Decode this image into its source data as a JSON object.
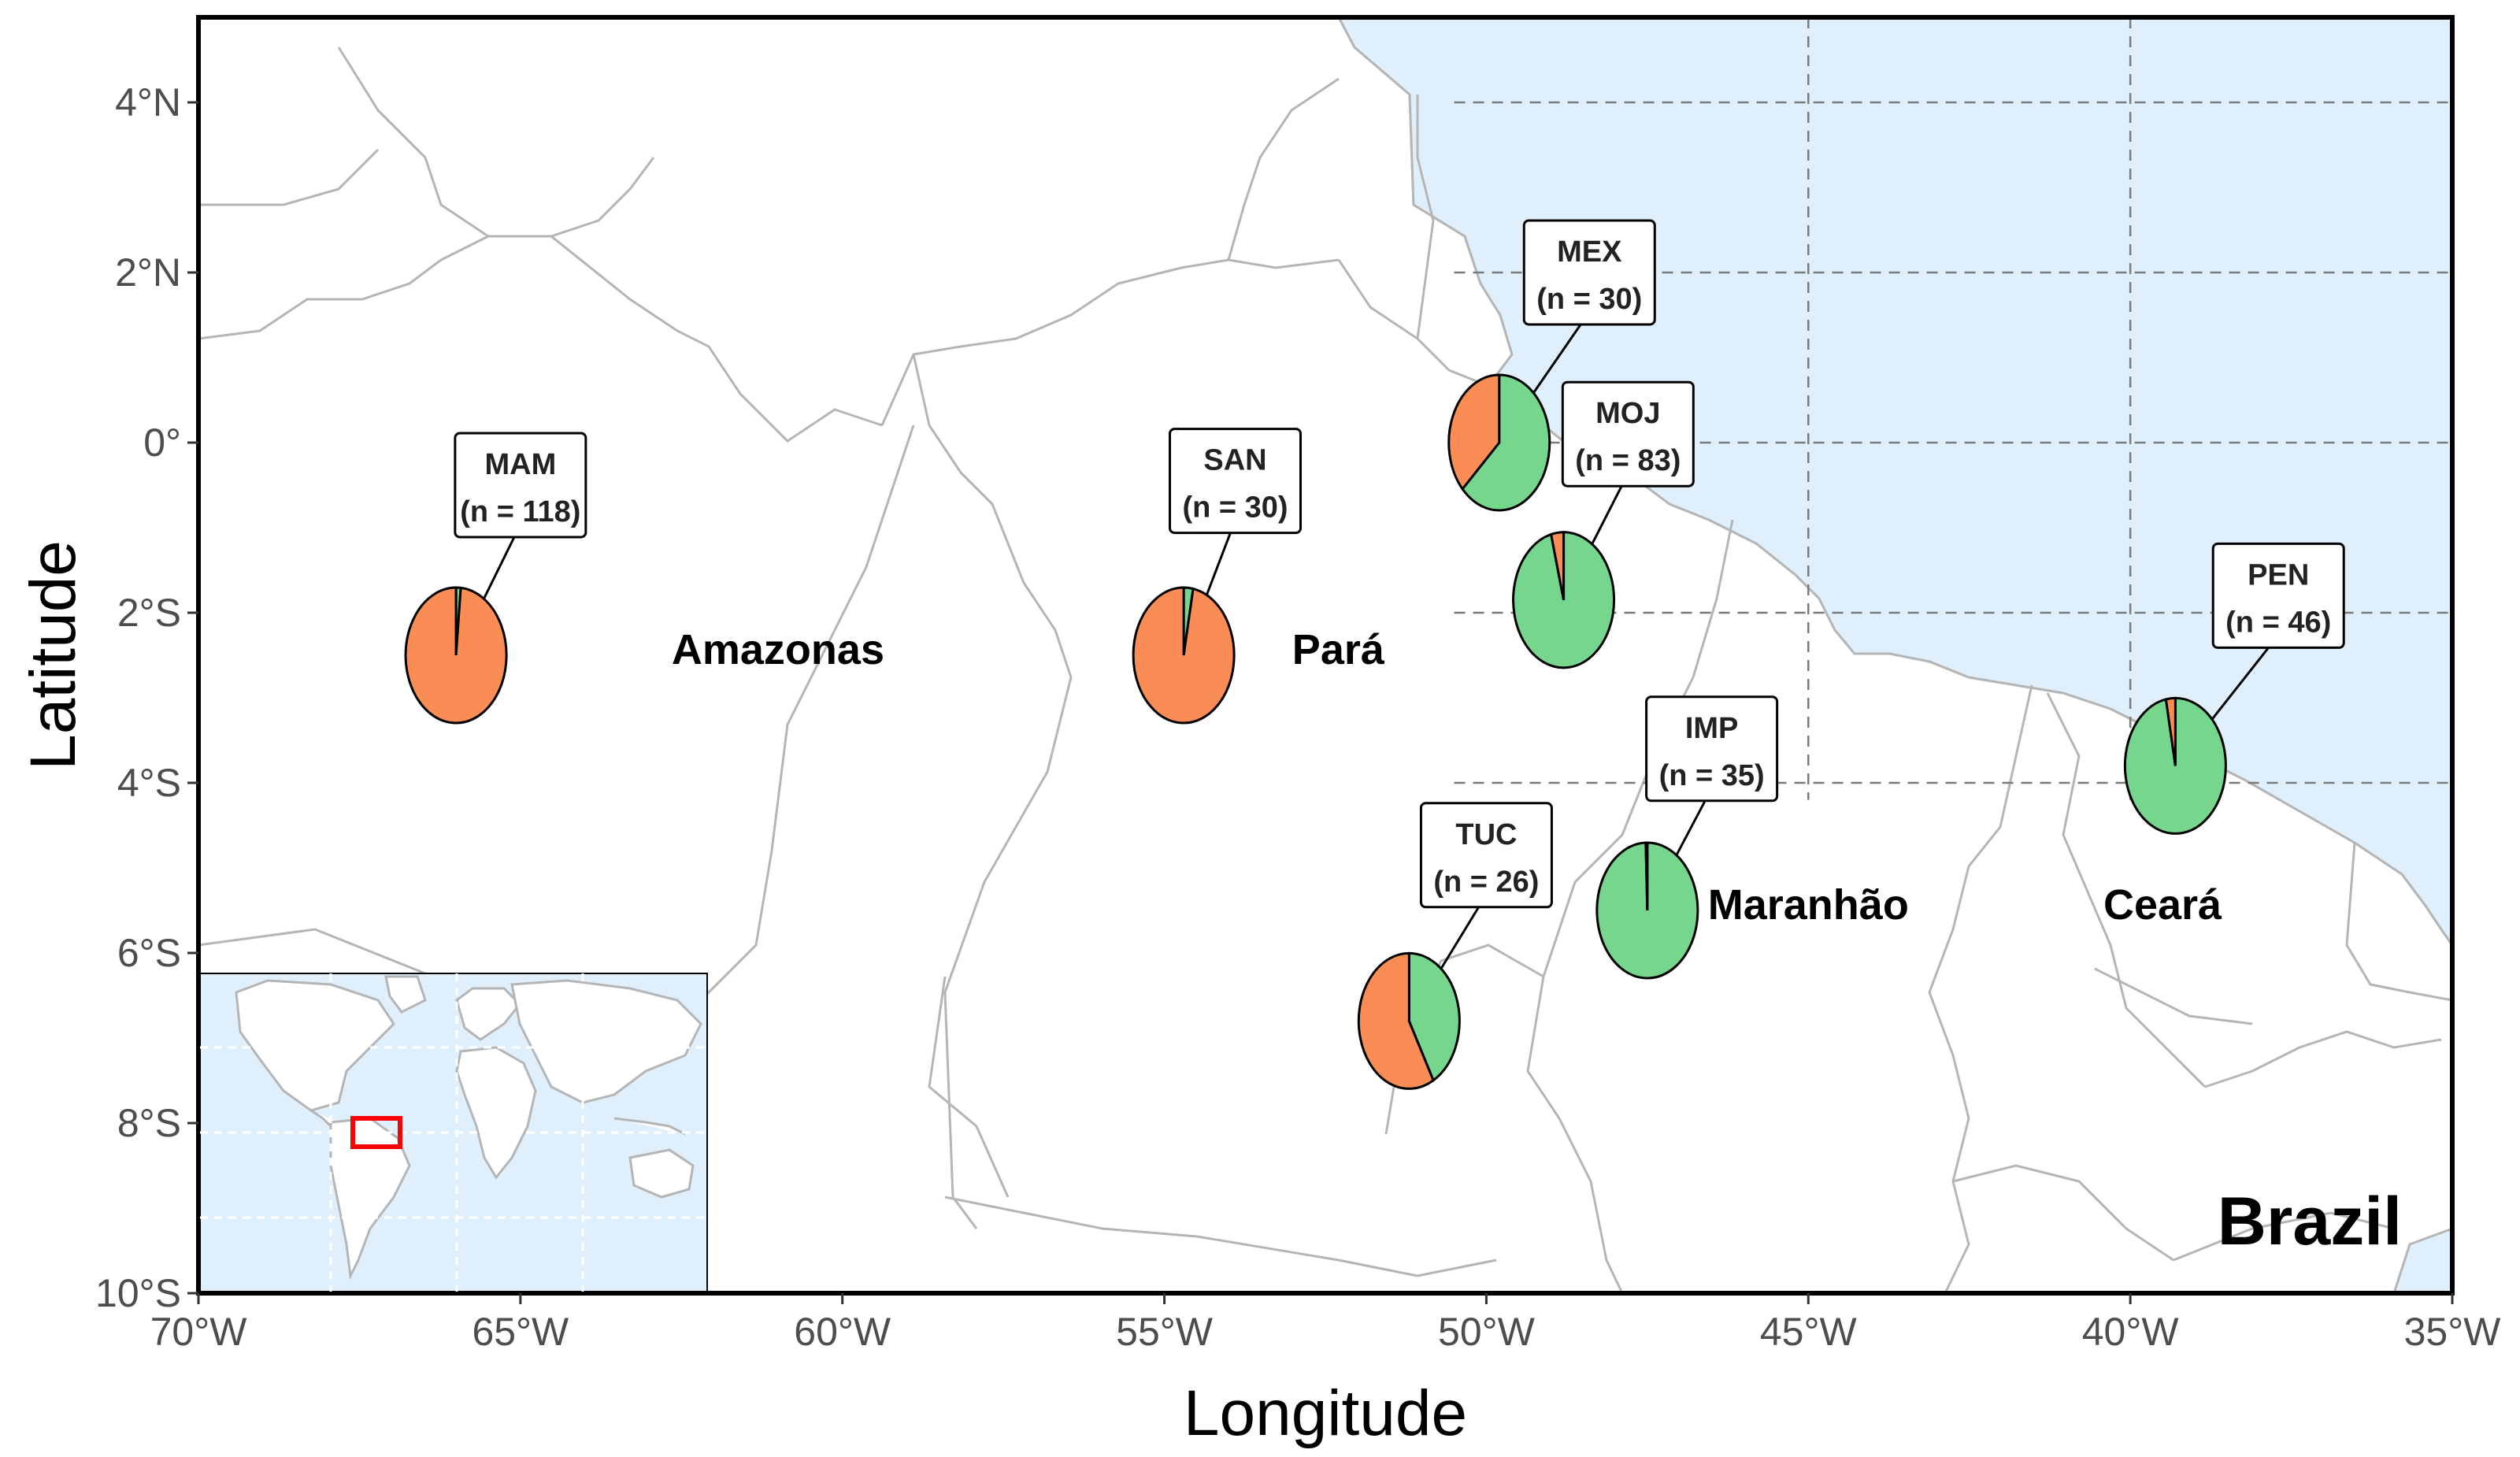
{
  "axes": {
    "xlabel": "Longitude",
    "ylabel": "Latitude",
    "x_range": [
      -70,
      -35
    ],
    "y_range": [
      -10,
      5
    ],
    "x_ticks": [
      {
        "value": -70,
        "label": "70°W"
      },
      {
        "value": -65,
        "label": "65°W"
      },
      {
        "value": -60,
        "label": "60°W"
      },
      {
        "value": -55,
        "label": "55°W"
      },
      {
        "value": -50,
        "label": "50°W"
      },
      {
        "value": -45,
        "label": "45°W"
      },
      {
        "value": -40,
        "label": "40°W"
      },
      {
        "value": -35,
        "label": "35°W"
      }
    ],
    "y_ticks": [
      {
        "value": 4,
        "label": "4°N"
      },
      {
        "value": 2,
        "label": "2°N"
      },
      {
        "value": 0,
        "label": "0°"
      },
      {
        "value": -2,
        "label": "2°S"
      },
      {
        "value": -4,
        "label": "4°S"
      },
      {
        "value": -6,
        "label": "6°S"
      },
      {
        "value": -8,
        "label": "8°S"
      },
      {
        "value": -10,
        "label": "10°S"
      }
    ]
  },
  "colors": {
    "ocean": "#dff0fc",
    "land": "#ffffff",
    "border": "#b5b5b5",
    "grid": "#7a7a7a",
    "cluster_orange": "#f98d55",
    "cluster_green": "#76d68e",
    "inset_box": "#ff0000"
  },
  "labels": {
    "country": "Brazil",
    "states": [
      {
        "name": "Amazonas",
        "lon": -61.0,
        "lat": -2.6
      },
      {
        "name": "Pará",
        "lon": -52.3,
        "lat": -2.6
      },
      {
        "name": "Maranhão",
        "lon": -45.0,
        "lat": -5.6
      },
      {
        "name": "Ceará",
        "lon": -39.5,
        "lat": -5.6
      }
    ]
  },
  "sites": [
    {
      "code": "MAM",
      "n_text": "(n = 118)",
      "n": 118,
      "lon": -66.0,
      "lat": -2.5,
      "label_lon": -65.0,
      "label_lat": -0.5,
      "orange": 0.985,
      "green": 0.015
    },
    {
      "code": "SAN",
      "n_text": "(n = 30)",
      "n": 30,
      "lon": -54.7,
      "lat": -2.5,
      "label_lon": -53.9,
      "label_lat": -0.45,
      "orange": 0.97,
      "green": 0.03
    },
    {
      "code": "MEX",
      "n_text": "(n = 30)",
      "n": 30,
      "lon": -49.8,
      "lat": 0.0,
      "label_lon": -48.4,
      "label_lat": 2.0,
      "orange": 0.37,
      "green": 0.63
    },
    {
      "code": "MOJ",
      "n_text": "(n = 83)",
      "n": 83,
      "lon": -48.8,
      "lat": -1.85,
      "label_lon": -47.8,
      "label_lat": 0.1,
      "orange": 0.04,
      "green": 0.96
    },
    {
      "code": "PEN",
      "n_text": "(n = 46)",
      "n": 46,
      "lon": -39.3,
      "lat": -3.8,
      "label_lon": -37.7,
      "label_lat": -1.8,
      "orange": 0.03,
      "green": 0.97
    },
    {
      "code": "IMP",
      "n_text": "(n = 35)",
      "n": 35,
      "lon": -47.5,
      "lat": -5.5,
      "label_lon": -46.5,
      "label_lat": -3.6,
      "orange": 0.005,
      "green": 0.995
    },
    {
      "code": "TUC",
      "n_text": "(n = 26)",
      "n": 26,
      "lon": -51.2,
      "lat": -6.8,
      "label_lon": -50.0,
      "label_lat": -4.85,
      "orange": 0.58,
      "green": 0.42
    }
  ],
  "inset": {
    "description_layer": "world",
    "highlight": {
      "lon_min": -70,
      "lon_max": -35,
      "lat_min": -10,
      "lat_max": 5
    }
  }
}
